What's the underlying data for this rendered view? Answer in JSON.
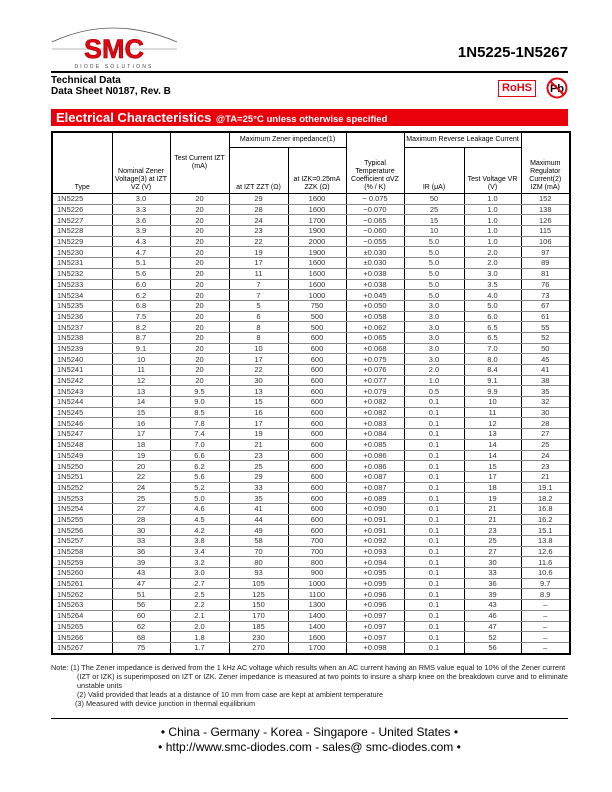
{
  "logo": {
    "text": "SMC",
    "subtitle": "DIODE SOLUTIONS"
  },
  "header": {
    "part_range": "1N5225-1N5267",
    "technical_data": "Technical Data",
    "datasheet": "Data Sheet N0187, Rev. B",
    "rohs": "RoHS",
    "pb": "Pb"
  },
  "banner": {
    "title": "Electrical Characteristics",
    "condition": "@TA=25°C unless otherwise specified"
  },
  "table": {
    "headers": {
      "type": "Type",
      "vz": "Nominal Zener Voltage(3) at IZT VZ (V)",
      "izt": "Test Current IZT (mA)",
      "zener_imp": "Maximum Zener impedance(1)",
      "zzt": "at IZT ZZT (Ω)",
      "zzk": "at IZK=0.25mA ZZK (Ω)",
      "temp": "Typical Temperature Coefficient αVZ (% / K)",
      "leak": "Maximum Reverse Leakage Current",
      "ir": "IR (μA)",
      "vr": "Test Voltage VR (V)",
      "izm": "Maximum Regulator Current(2) IZM (mA)"
    },
    "rows": [
      [
        "1N5225",
        "3.0",
        "20",
        "29",
        "1600",
        "− 0.075",
        "50",
        "1.0",
        "152"
      ],
      [
        "1N5226",
        "3.3",
        "20",
        "28",
        "1600",
        "−0.070",
        "25",
        "1.0",
        "138"
      ],
      [
        "1N5227",
        "3.6",
        "20",
        "24",
        "1700",
        "−0.065",
        "15",
        "1.0",
        "126"
      ],
      [
        "1N5228",
        "3.9",
        "20",
        "23",
        "1900",
        "−0.060",
        "10",
        "1.0",
        "115"
      ],
      [
        "1N5229",
        "4.3",
        "20",
        "22",
        "2000",
        "−0.055",
        "5.0",
        "1.0",
        "106"
      ],
      [
        "1N5230",
        "4.7",
        "20",
        "19",
        "1900",
        "±0.030",
        "5.0",
        "2.0",
        "97"
      ],
      [
        "1N5231",
        "5.1",
        "20",
        "17",
        "1600",
        "±0.030",
        "5.0",
        "2.0",
        "89"
      ],
      [
        "1N5232",
        "5.6",
        "20",
        "11",
        "1600",
        "+0.038",
        "5.0",
        "3.0",
        "81"
      ],
      [
        "1N5233",
        "6.0",
        "20",
        "7",
        "1600",
        "+0.038",
        "5.0",
        "3.5",
        "76"
      ],
      [
        "1N5234",
        "6.2",
        "20",
        "7",
        "1000",
        "+0.045",
        "5.0",
        "4.0",
        "73"
      ],
      [
        "1N5235",
        "6.8",
        "20",
        "5",
        "750",
        "+0.050",
        "3.0",
        "5.0",
        "67"
      ],
      [
        "1N5236",
        "7.5",
        "20",
        "6",
        "500",
        "+0.058",
        "3.0",
        "6.0",
        "61"
      ],
      [
        "1N5237",
        "8.2",
        "20",
        "8",
        "500",
        "+0.062",
        "3.0",
        "6.5",
        "55"
      ],
      [
        "1N5238",
        "8.7",
        "20",
        "8",
        "600",
        "+0.065",
        "3.0",
        "6.5",
        "52"
      ],
      [
        "1N5239",
        "9.1",
        "20",
        "10",
        "600",
        "+0.068",
        "3.0",
        "7.0",
        "50"
      ],
      [
        "1N5240",
        "10",
        "20",
        "17",
        "600",
        "+0.075",
        "3.0",
        "8.0",
        "45"
      ],
      [
        "1N5241",
        "11",
        "20",
        "22",
        "600",
        "+0.076",
        "2.0",
        "8.4",
        "41"
      ],
      [
        "1N5242",
        "12",
        "20",
        "30",
        "600",
        "+0.077",
        "1.0",
        "9.1",
        "38"
      ],
      [
        "1N5243",
        "13",
        "9.5",
        "13",
        "600",
        "+0.079",
        "0.5",
        "9.9",
        "35"
      ],
      [
        "1N5244",
        "14",
        "9.0",
        "15",
        "600",
        "+0.082",
        "0.1",
        "10",
        "32"
      ],
      [
        "1N5245",
        "15",
        "8.5",
        "16",
        "600",
        "+0.082",
        "0.1",
        "11",
        "30"
      ],
      [
        "1N5246",
        "16",
        "7.8",
        "17",
        "600",
        "+0.083",
        "0.1",
        "12",
        "28"
      ],
      [
        "1N5247",
        "17",
        "7.4",
        "19",
        "600",
        "+0.084",
        "0.1",
        "13",
        "27"
      ],
      [
        "1N5248",
        "18",
        "7.0",
        "21",
        "600",
        "+0.085",
        "0.1",
        "14",
        "25"
      ],
      [
        "1N5249",
        "19",
        "6.6",
        "23",
        "600",
        "+0.086",
        "0.1",
        "14",
        "24"
      ],
      [
        "1N5250",
        "20",
        "6.2",
        "25",
        "600",
        "+0.086",
        "0.1",
        "15",
        "23"
      ],
      [
        "1N5251",
        "22",
        "5.6",
        "29",
        "600",
        "+0.087",
        "0.1",
        "17",
        "21"
      ],
      [
        "1N5252",
        "24",
        "5.2",
        "33",
        "600",
        "+0.087",
        "0.1",
        "18",
        "19.1"
      ],
      [
        "1N5253",
        "25",
        "5.0",
        "35",
        "600",
        "+0.089",
        "0.1",
        "19",
        "18.2"
      ],
      [
        "1N5254",
        "27",
        "4.6",
        "41",
        "600",
        "+0.090",
        "0.1",
        "21",
        "16.8"
      ],
      [
        "1N5255",
        "28",
        "4.5",
        "44",
        "600",
        "+0.091",
        "0.1",
        "21",
        "16.2"
      ],
      [
        "1N5256",
        "30",
        "4.2",
        "49",
        "600",
        "+0.091",
        "0.1",
        "23",
        "15.1"
      ],
      [
        "1N5257",
        "33",
        "3.8",
        "58",
        "700",
        "+0.092",
        "0.1",
        "25",
        "13.8"
      ],
      [
        "1N5258",
        "36",
        "3.4",
        "70",
        "700",
        "+0.093",
        "0.1",
        "27",
        "12.6"
      ],
      [
        "1N5259",
        "39",
        "3.2",
        "80",
        "800",
        "+0.094",
        "0.1",
        "30",
        "11.6"
      ],
      [
        "1N5260",
        "43",
        "3.0",
        "93",
        "900",
        "+0.095",
        "0.1",
        "33",
        "10.6"
      ],
      [
        "1N5261",
        "47",
        "2.7",
        "105",
        "1000",
        "+0.095",
        "0.1",
        "36",
        "9.7"
      ],
      [
        "1N5262",
        "51",
        "2.5",
        "125",
        "1100",
        "+0.096",
        "0.1",
        "39",
        "8.9"
      ],
      [
        "1N5263",
        "56",
        "2.2",
        "150",
        "1300",
        "+0.096",
        "0.1",
        "43",
        "–"
      ],
      [
        "1N5264",
        "60",
        "2.1",
        "170",
        "1400",
        "+0.097",
        "0.1",
        "46",
        "–"
      ],
      [
        "1N5265",
        "62",
        "2.0",
        "185",
        "1400",
        "+0.097",
        "0.1",
        "47",
        "–"
      ],
      [
        "1N5266",
        "68",
        "1.8",
        "230",
        "1600",
        "+0.097",
        "0.1",
        "52",
        "–"
      ],
      [
        "1N5267",
        "75",
        "1.7",
        "270",
        "1700",
        "+0.098",
        "0.1",
        "56",
        "–"
      ]
    ]
  },
  "notes": {
    "n1": "Note: (1) The Zener impedance is derived from the 1 kHz AC voltage which results when an AC current having an RMS value equal to 10% of the Zener current (IZT or IZK) is superimposed on IZT or IZK. Zener impedance is measured at two points to insure a sharp knee on the breakdown curve and to eliminate unstable units",
    "n2": "(2) Valid provided that leads at a distance of 10 mm from case are kept at ambient temperature",
    "n3": "(3) Measured with device junction in thermal equilibrium"
  },
  "footer": {
    "countries": "• China  -  Germany  -  Korea  -  Singapore  -  United States •",
    "contact": "• http://www.smc-diodes.com  -  sales@ smc-diodes.com •"
  },
  "colors": {
    "brand_red": "#e8000b"
  }
}
